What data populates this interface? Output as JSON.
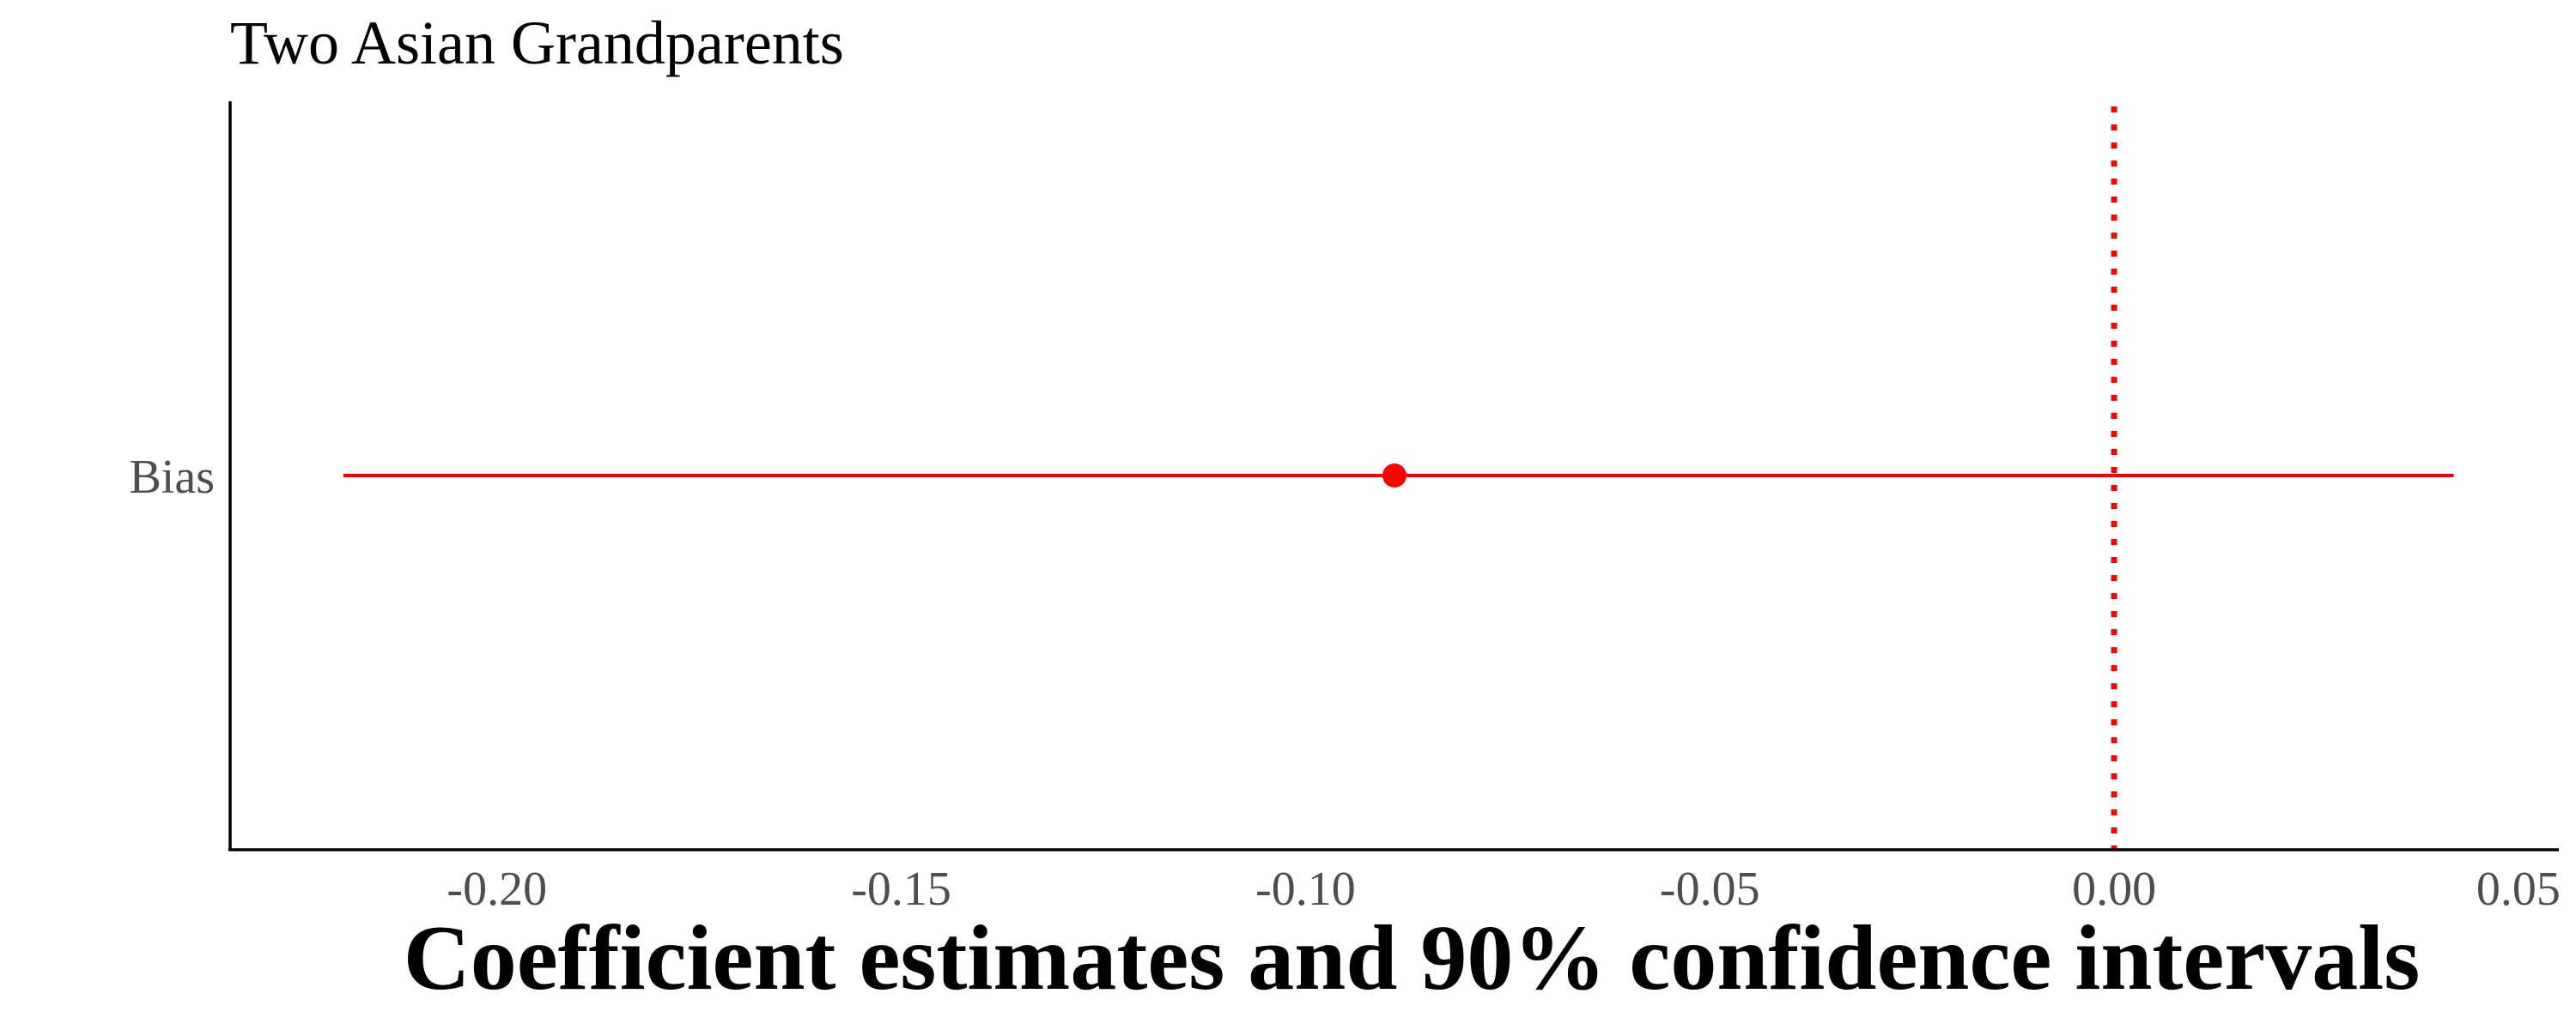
{
  "chart_data": {
    "type": "scatter",
    "subtype": "coefficient-plot",
    "title": "Two Asian Grandparents",
    "xlabel": "Coefficient estimates and 90% confidence intervals",
    "ylabel": "",
    "categories": [
      "Bias"
    ],
    "series": [
      {
        "color": "#ff0000",
        "points": [
          {
            "category": "Bias",
            "estimate": -0.089,
            "ci_low": -0.219,
            "ci_high": 0.042
          }
        ]
      }
    ],
    "xlim": [
      -0.233,
      0.055
    ],
    "x_ticks": [
      -0.2,
      -0.15,
      -0.1,
      -0.05,
      0.0,
      0.05
    ],
    "x_tick_labels": [
      "-0.20",
      "-0.15",
      "-0.10",
      "-0.05",
      "0.00",
      "0.05"
    ],
    "reference_line": {
      "x": 0.0,
      "style": "dotted",
      "color": "#ff0000"
    },
    "grid": false,
    "legend": "none"
  }
}
